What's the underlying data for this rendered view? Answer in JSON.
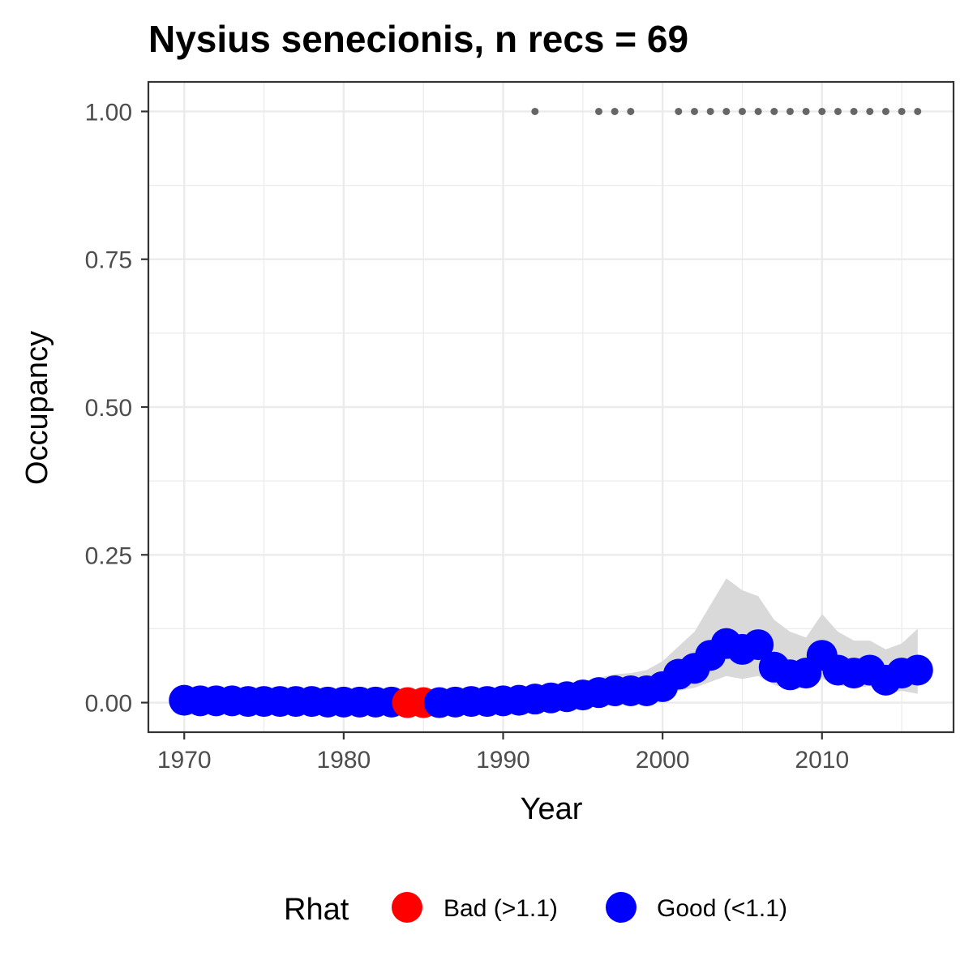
{
  "chart_data": {
    "type": "line",
    "title": "Nysius senecionis, n recs = 69",
    "xlabel": "Year",
    "ylabel": "Occupancy",
    "xlim": [
      1967.8,
      1968.2
    ],
    "xrange": [
      1967.75,
      2018.25
    ],
    "ylim": [
      -0.05,
      1.05
    ],
    "x_ticks": [
      1970,
      1980,
      1990,
      2000,
      2010
    ],
    "x_tick_labels": [
      "1970",
      "1980",
      "1990",
      "2000",
      "2010"
    ],
    "y_ticks": [
      0,
      0.25,
      0.5,
      0.75,
      1
    ],
    "y_tick_labels": [
      "0.00",
      "0.25",
      "0.50",
      "0.75",
      "1.00"
    ],
    "grid": true,
    "legend_position": "bottom",
    "legend": {
      "title": "Rhat",
      "entries": [
        {
          "label": "Bad (>1.1)",
          "color": "#ff0000"
        },
        {
          "label": "Good (<1.1)",
          "color": "#0000ff"
        }
      ]
    },
    "colors": {
      "bad": "#ff0000",
      "good": "#0000ff",
      "ribbon": "#d9d9d9",
      "record_dot": "#666666",
      "panel_border": "#333333",
      "grid": "#ebebeb"
    },
    "series": [
      {
        "kind": "occupancy",
        "x": [
          1970,
          1971,
          1972,
          1973,
          1974,
          1975,
          1976,
          1977,
          1978,
          1979,
          1980,
          1981,
          1982,
          1983,
          1984,
          1985,
          1986,
          1987,
          1988,
          1989,
          1990,
          1991,
          1992,
          1993,
          1994,
          1995,
          1996,
          1997,
          1998,
          1999,
          2000,
          2001,
          2002,
          2003,
          2004,
          2005,
          2006,
          2007,
          2008,
          2009,
          2010,
          2011,
          2012,
          2013,
          2014,
          2015,
          2016
        ],
        "y": [
          0.004,
          0.003,
          0.003,
          0.003,
          0.002,
          0.002,
          0.002,
          0.002,
          0.002,
          0.001,
          0.001,
          0.001,
          0.001,
          0.001,
          0.0,
          0.0,
          0.0,
          0.001,
          0.002,
          0.002,
          0.003,
          0.004,
          0.006,
          0.008,
          0.01,
          0.013,
          0.017,
          0.02,
          0.02,
          0.02,
          0.027,
          0.048,
          0.058,
          0.08,
          0.1,
          0.09,
          0.098,
          0.06,
          0.047,
          0.05,
          0.08,
          0.055,
          0.05,
          0.055,
          0.038,
          0.05,
          0.055
        ],
        "rhat": [
          "good",
          "good",
          "good",
          "good",
          "good",
          "good",
          "good",
          "good",
          "good",
          "good",
          "good",
          "good",
          "good",
          "good",
          "bad",
          "bad",
          "good",
          "good",
          "good",
          "good",
          "good",
          "good",
          "good",
          "good",
          "good",
          "good",
          "good",
          "good",
          "good",
          "good",
          "good",
          "good",
          "good",
          "good",
          "good",
          "good",
          "good",
          "good",
          "good",
          "good",
          "good",
          "good",
          "good",
          "good",
          "good",
          "good",
          "good"
        ],
        "lower": [
          0.0,
          0.0,
          0.0,
          0.0,
          0.0,
          0.0,
          0.0,
          0.0,
          0.0,
          0.0,
          0.0,
          0.0,
          0.0,
          0.0,
          0.0,
          0.0,
          0.0,
          0.0,
          0.0,
          0.0,
          0.0,
          0.0,
          0.0,
          0.0,
          0.0,
          0.002,
          0.005,
          0.008,
          0.009,
          0.01,
          0.015,
          0.02,
          0.025,
          0.035,
          0.045,
          0.04,
          0.045,
          0.03,
          0.022,
          0.025,
          0.04,
          0.03,
          0.025,
          0.028,
          0.015,
          0.02,
          0.015
        ],
        "upper": [
          0.03,
          0.022,
          0.02,
          0.018,
          0.016,
          0.015,
          0.014,
          0.013,
          0.012,
          0.011,
          0.01,
          0.01,
          0.01,
          0.01,
          0.01,
          0.01,
          0.011,
          0.012,
          0.013,
          0.014,
          0.016,
          0.018,
          0.022,
          0.026,
          0.03,
          0.036,
          0.042,
          0.048,
          0.05,
          0.055,
          0.07,
          0.095,
          0.12,
          0.165,
          0.21,
          0.19,
          0.18,
          0.14,
          0.12,
          0.11,
          0.15,
          0.12,
          0.105,
          0.105,
          0.09,
          0.1,
          0.125
        ]
      },
      {
        "kind": "records",
        "x": [
          1992,
          1996,
          1997,
          1998,
          2001,
          2002,
          2003,
          2004,
          2005,
          2006,
          2007,
          2008,
          2009,
          2010,
          2011,
          2012,
          2013,
          2014,
          2015,
          2016
        ],
        "y": [
          1,
          1,
          1,
          1,
          1,
          1,
          1,
          1,
          1,
          1,
          1,
          1,
          1,
          1,
          1,
          1,
          1,
          1,
          1,
          1
        ]
      }
    ]
  }
}
